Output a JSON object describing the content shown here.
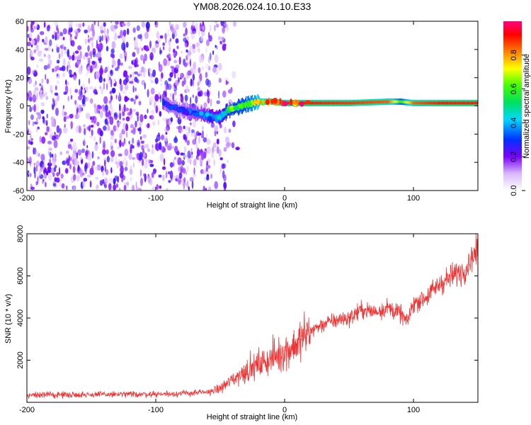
{
  "title": "YM08.2026.024.10.10.E33",
  "colors": {
    "snr_line": "#ee3333",
    "frame": "#000000",
    "speckle": "#7d2fe6",
    "ridge_high": "#ff2020"
  },
  "chart_data": [
    {
      "type": "heatmap",
      "xlabel": "Height of straight line (km)",
      "ylabel": "Frequency (Hz)",
      "xlim": [
        -200,
        150
      ],
      "ylim": [
        -60,
        60
      ],
      "xticks": [
        -200,
        -100,
        0,
        100
      ],
      "yticks": [
        60,
        40,
        20,
        0,
        -20,
        -40,
        -60
      ],
      "colorbar": {
        "label": "Normalized spectral amplitude",
        "range": [
          0,
          1
        ],
        "ticks": [
          "0.0",
          "0.2",
          "0.4",
          "0.6",
          "0.8"
        ],
        "tick_values": [
          0,
          0.2,
          0.4,
          0.6,
          0.8
        ],
        "colormap": "rainbow"
      },
      "noise_region": {
        "x_from": -200,
        "x_to": -45,
        "amplitude": 0.12
      },
      "ridge": {
        "x": [
          -95,
          -90,
          -80,
          -70,
          -60,
          -50,
          -45,
          -40,
          -30,
          -20,
          -10,
          0,
          20,
          50,
          80,
          90,
          100,
          120,
          150
        ],
        "freq": [
          3,
          0,
          -3,
          -5,
          -7,
          -8,
          -4,
          -2,
          1,
          3,
          3,
          2,
          2,
          2,
          3,
          3,
          2,
          2,
          2
        ],
        "amplitude": [
          0.3,
          0.25,
          0.25,
          0.3,
          0.35,
          0.4,
          0.5,
          0.55,
          0.6,
          0.75,
          0.85,
          0.9,
          0.9,
          0.88,
          0.85,
          0.6,
          0.85,
          0.9,
          0.9
        ]
      }
    },
    {
      "type": "line",
      "xlabel": "Height of straight line (km)",
      "ylabel": "SNR (10 * v/v)",
      "xlim": [
        -200,
        150
      ],
      "ylim": [
        0,
        8000
      ],
      "xticks": [
        -200,
        -100,
        0,
        100
      ],
      "yticks": [
        2000,
        4000,
        6000,
        8000
      ],
      "series": [
        {
          "x": [
            -200,
            -175,
            -150,
            -125,
            -100,
            -80,
            -60,
            -50,
            -40,
            -30,
            -20,
            -10,
            0,
            10,
            20,
            30,
            40,
            50,
            60,
            70,
            80,
            90,
            95,
            100,
            110,
            120,
            130,
            140,
            145,
            150
          ],
          "y": [
            350,
            360,
            370,
            380,
            390,
            420,
            480,
            650,
            1100,
            1500,
            1800,
            2100,
            2400,
            2800,
            3400,
            3700,
            3900,
            4000,
            4400,
            4300,
            4500,
            4200,
            3800,
            4700,
            5000,
            5600,
            6000,
            6300,
            6900,
            7200
          ]
        }
      ]
    }
  ]
}
